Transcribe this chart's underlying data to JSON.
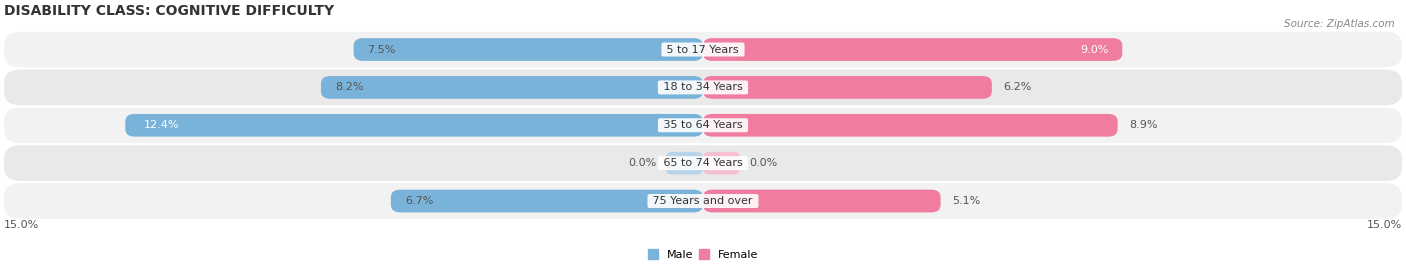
{
  "title": "DISABILITY CLASS: COGNITIVE DIFFICULTY",
  "source": "Source: ZipAtlas.com",
  "categories": [
    "5 to 17 Years",
    "18 to 34 Years",
    "35 to 64 Years",
    "65 to 74 Years",
    "75 Years and over"
  ],
  "male_values": [
    7.5,
    8.2,
    12.4,
    0.0,
    6.7
  ],
  "female_values": [
    9.0,
    6.2,
    8.9,
    0.0,
    5.1
  ],
  "male_color": "#7ab3d9",
  "female_color": "#f07ca0",
  "male_color_zero": "#b8d4ea",
  "female_color_zero": "#f5c0d0",
  "row_colors": [
    "#f2f2f2",
    "#e9e9e9",
    "#f2f2f2",
    "#e9e9e9",
    "#f2f2f2"
  ],
  "max_val": 15.0,
  "title_fontsize": 10,
  "label_fontsize": 8,
  "source_fontsize": 7.5
}
